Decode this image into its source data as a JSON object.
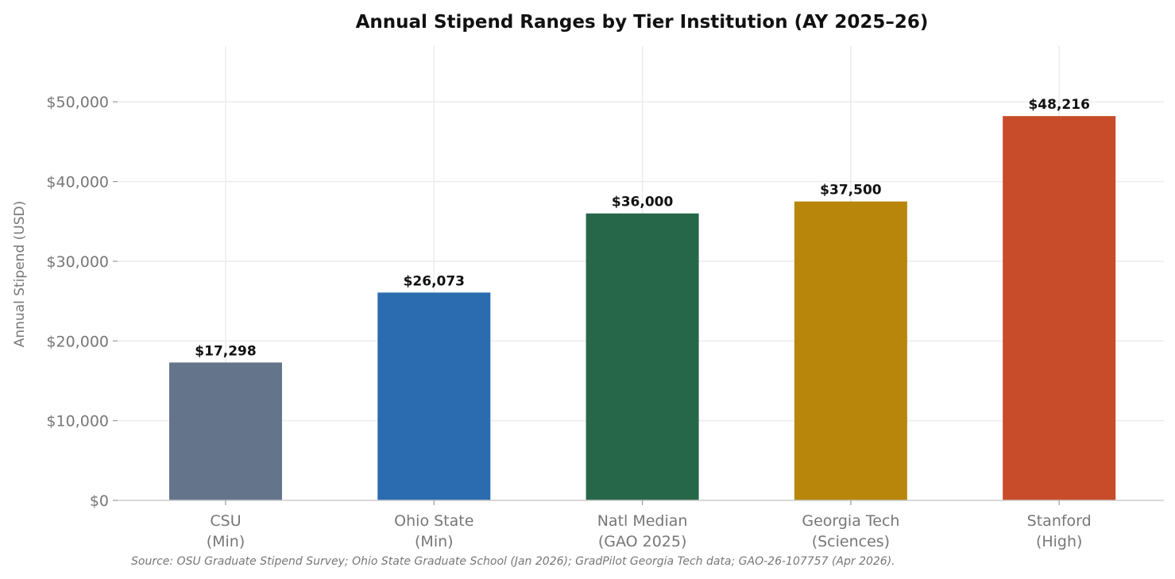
{
  "chart_data": {
    "type": "bar",
    "title": "Annual Stipend Ranges by Tier Institution (AY 2025–26)",
    "xlabel": "",
    "ylabel": "Annual Stipend (USD)",
    "categories": [
      [
        "CSU",
        "(Min)"
      ],
      [
        "Ohio State",
        "(Min)"
      ],
      [
        "Natl Median",
        "(GAO 2025)"
      ],
      [
        "Georgia Tech",
        "(Sciences)"
      ],
      [
        "Stanford",
        "(High)"
      ]
    ],
    "values": [
      17298,
      26073,
      36000,
      37500,
      48216
    ],
    "data_labels": [
      "$17,298",
      "$26,073",
      "$36,000",
      "$37,500",
      "$48,216"
    ],
    "colors": [
      "#64748b",
      "#2b6cb0",
      "#276749",
      "#b7860b",
      "#c84b2a"
    ],
    "ylim": [
      0,
      57000
    ],
    "yticks": [
      0,
      10000,
      20000,
      30000,
      40000,
      50000
    ],
    "ytick_labels": [
      "$0",
      "$10,000",
      "$20,000",
      "$30,000",
      "$40,000",
      "$50,000"
    ],
    "grid": true,
    "legend": "none"
  },
  "source_note": "Source: OSU Graduate Stipend Survey; Ohio State Graduate School (Jan 2026); GradPilot Georgia Tech data; GAO-26-107757 (Apr 2026)."
}
